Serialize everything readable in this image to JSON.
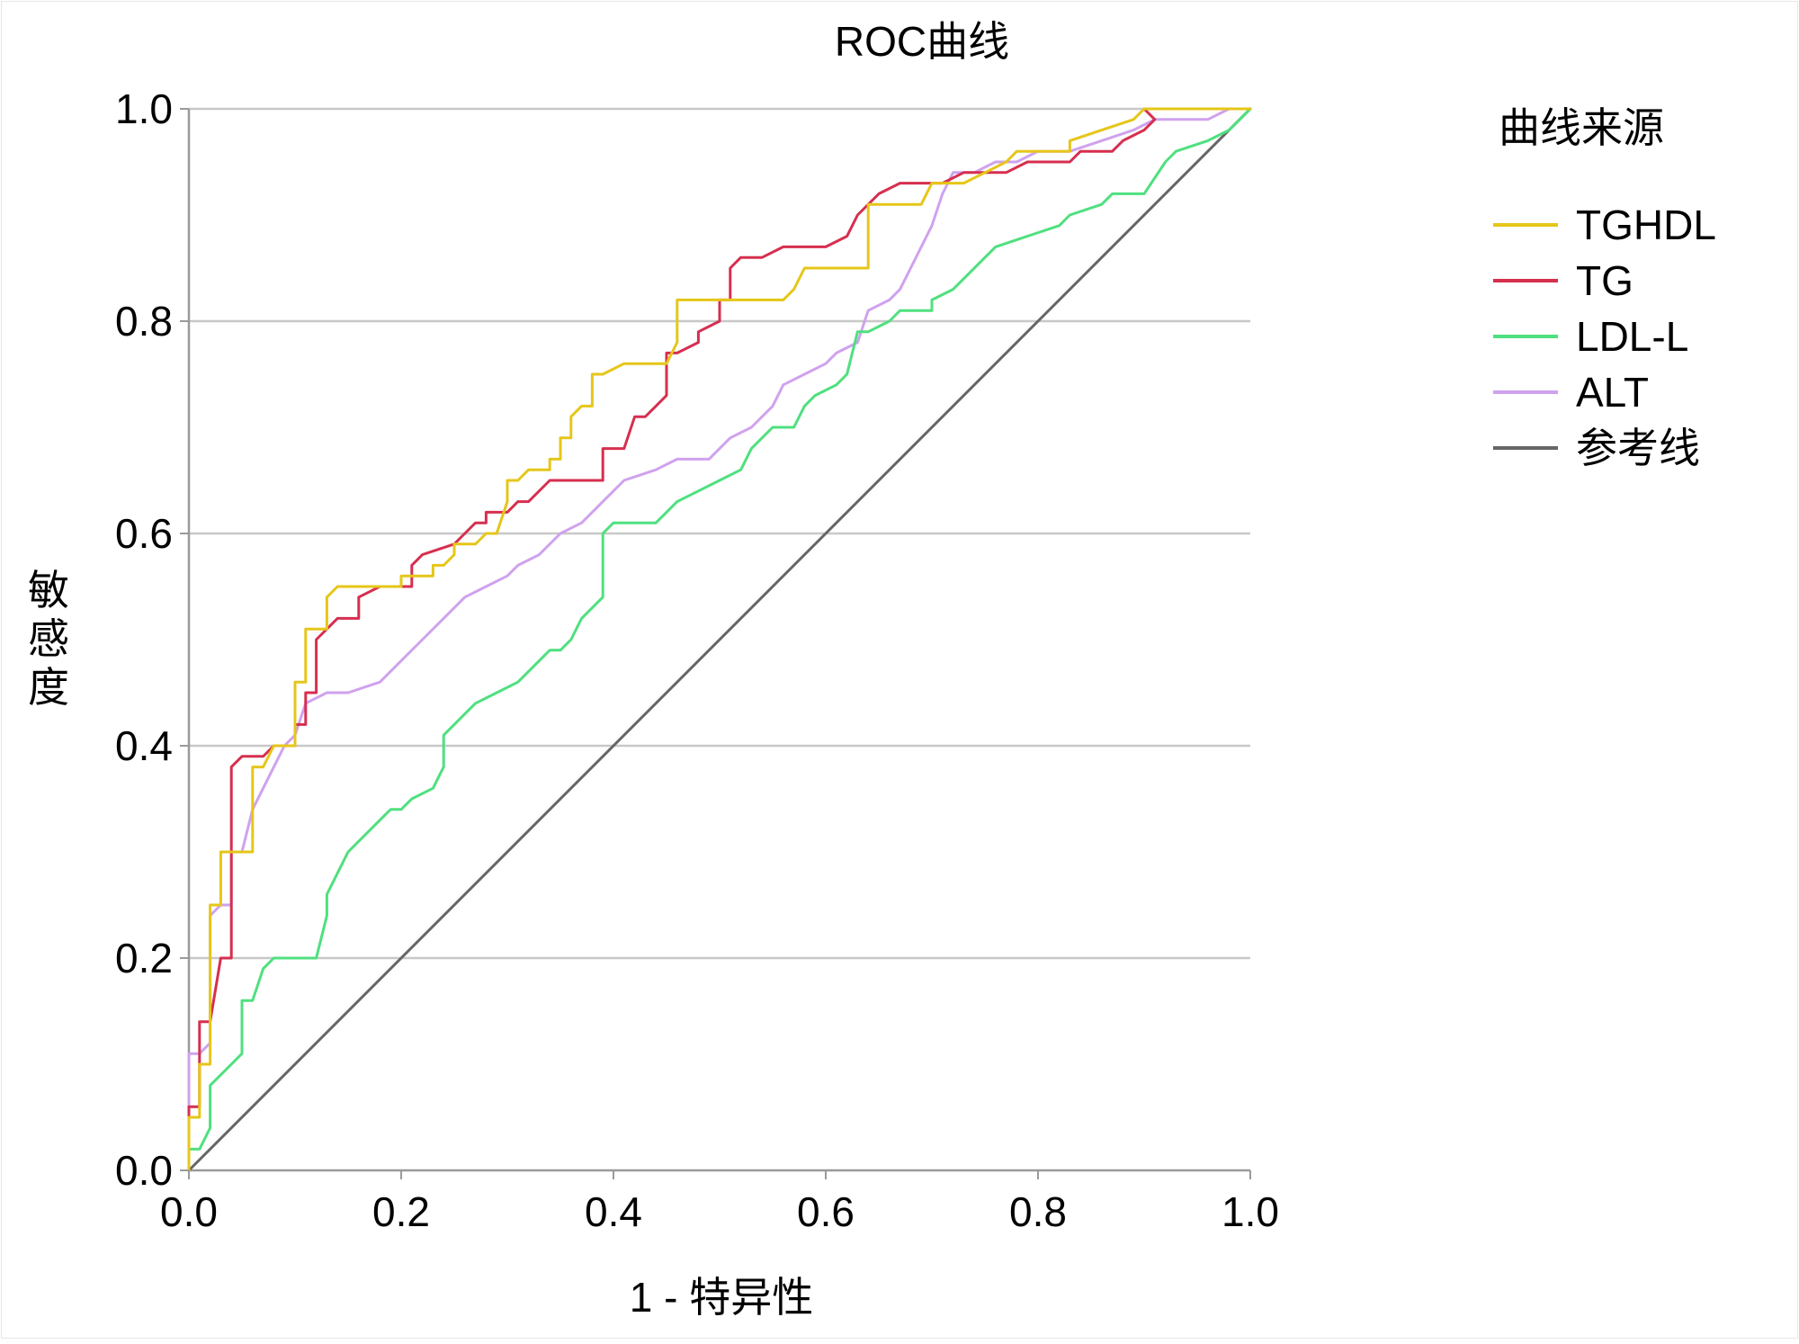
{
  "chart_data": {
    "type": "line",
    "title": "ROC曲线",
    "xlabel": "1 - 特异性",
    "ylabel": "敏感度",
    "xlim": [
      0,
      1
    ],
    "ylim": [
      0,
      1
    ],
    "x_ticks": [
      "0.0",
      "0.2",
      "0.4",
      "0.6",
      "0.8",
      "1.0"
    ],
    "y_ticks": [
      "0.0",
      "0.2",
      "0.4",
      "0.6",
      "0.8",
      "1.0"
    ],
    "grid": "horizontal",
    "legend": {
      "title": "曲线来源",
      "position": "right"
    },
    "series": [
      {
        "name": "TGHDL",
        "color": "#e6c619",
        "points": [
          [
            0,
            0
          ],
          [
            0,
            0.05
          ],
          [
            0.01,
            0.05
          ],
          [
            0.01,
            0.1
          ],
          [
            0.02,
            0.1
          ],
          [
            0.02,
            0.25
          ],
          [
            0.03,
            0.25
          ],
          [
            0.03,
            0.3
          ],
          [
            0.04,
            0.3
          ],
          [
            0.05,
            0.3
          ],
          [
            0.06,
            0.3
          ],
          [
            0.06,
            0.38
          ],
          [
            0.07,
            0.38
          ],
          [
            0.08,
            0.4
          ],
          [
            0.1,
            0.4
          ],
          [
            0.1,
            0.46
          ],
          [
            0.11,
            0.46
          ],
          [
            0.11,
            0.51
          ],
          [
            0.12,
            0.51
          ],
          [
            0.13,
            0.51
          ],
          [
            0.13,
            0.54
          ],
          [
            0.14,
            0.55
          ],
          [
            0.16,
            0.55
          ],
          [
            0.2,
            0.55
          ],
          [
            0.2,
            0.56
          ],
          [
            0.23,
            0.56
          ],
          [
            0.23,
            0.57
          ],
          [
            0.24,
            0.57
          ],
          [
            0.25,
            0.58
          ],
          [
            0.25,
            0.59
          ],
          [
            0.27,
            0.59
          ],
          [
            0.28,
            0.6
          ],
          [
            0.29,
            0.6
          ],
          [
            0.3,
            0.63
          ],
          [
            0.3,
            0.65
          ],
          [
            0.31,
            0.65
          ],
          [
            0.32,
            0.66
          ],
          [
            0.34,
            0.66
          ],
          [
            0.34,
            0.67
          ],
          [
            0.35,
            0.67
          ],
          [
            0.35,
            0.69
          ],
          [
            0.36,
            0.69
          ],
          [
            0.36,
            0.71
          ],
          [
            0.37,
            0.72
          ],
          [
            0.38,
            0.72
          ],
          [
            0.38,
            0.75
          ],
          [
            0.39,
            0.75
          ],
          [
            0.41,
            0.76
          ],
          [
            0.42,
            0.76
          ],
          [
            0.45,
            0.76
          ],
          [
            0.46,
            0.78
          ],
          [
            0.46,
            0.82
          ],
          [
            0.47,
            0.82
          ],
          [
            0.56,
            0.82
          ],
          [
            0.57,
            0.83
          ],
          [
            0.58,
            0.85
          ],
          [
            0.64,
            0.85
          ],
          [
            0.64,
            0.91
          ],
          [
            0.65,
            0.91
          ],
          [
            0.69,
            0.91
          ],
          [
            0.7,
            0.93
          ],
          [
            0.73,
            0.93
          ],
          [
            0.75,
            0.94
          ],
          [
            0.77,
            0.95
          ],
          [
            0.78,
            0.96
          ],
          [
            0.83,
            0.96
          ],
          [
            0.83,
            0.97
          ],
          [
            0.86,
            0.98
          ],
          [
            0.89,
            0.99
          ],
          [
            0.9,
            1.0
          ],
          [
            1.0,
            1.0
          ]
        ]
      },
      {
        "name": "TG",
        "color": "#d62f4f",
        "points": [
          [
            0,
            0
          ],
          [
            0,
            0.06
          ],
          [
            0.01,
            0.06
          ],
          [
            0.01,
            0.14
          ],
          [
            0.02,
            0.14
          ],
          [
            0.03,
            0.2
          ],
          [
            0.04,
            0.2
          ],
          [
            0.04,
            0.38
          ],
          [
            0.05,
            0.39
          ],
          [
            0.07,
            0.39
          ],
          [
            0.08,
            0.4
          ],
          [
            0.1,
            0.4
          ],
          [
            0.1,
            0.42
          ],
          [
            0.11,
            0.42
          ],
          [
            0.11,
            0.45
          ],
          [
            0.12,
            0.45
          ],
          [
            0.12,
            0.5
          ],
          [
            0.13,
            0.51
          ],
          [
            0.14,
            0.52
          ],
          [
            0.16,
            0.52
          ],
          [
            0.16,
            0.54
          ],
          [
            0.18,
            0.55
          ],
          [
            0.21,
            0.55
          ],
          [
            0.21,
            0.57
          ],
          [
            0.22,
            0.58
          ],
          [
            0.25,
            0.59
          ],
          [
            0.26,
            0.6
          ],
          [
            0.27,
            0.61
          ],
          [
            0.28,
            0.61
          ],
          [
            0.28,
            0.62
          ],
          [
            0.3,
            0.62
          ],
          [
            0.31,
            0.63
          ],
          [
            0.32,
            0.63
          ],
          [
            0.34,
            0.65
          ],
          [
            0.36,
            0.65
          ],
          [
            0.39,
            0.65
          ],
          [
            0.39,
            0.68
          ],
          [
            0.41,
            0.68
          ],
          [
            0.42,
            0.71
          ],
          [
            0.43,
            0.71
          ],
          [
            0.44,
            0.72
          ],
          [
            0.45,
            0.73
          ],
          [
            0.45,
            0.77
          ],
          [
            0.46,
            0.77
          ],
          [
            0.48,
            0.78
          ],
          [
            0.48,
            0.79
          ],
          [
            0.5,
            0.8
          ],
          [
            0.5,
            0.82
          ],
          [
            0.51,
            0.82
          ],
          [
            0.51,
            0.85
          ],
          [
            0.52,
            0.86
          ],
          [
            0.54,
            0.86
          ],
          [
            0.56,
            0.87
          ],
          [
            0.6,
            0.87
          ],
          [
            0.62,
            0.88
          ],
          [
            0.63,
            0.9
          ],
          [
            0.65,
            0.92
          ],
          [
            0.67,
            0.93
          ],
          [
            0.71,
            0.93
          ],
          [
            0.73,
            0.94
          ],
          [
            0.77,
            0.94
          ],
          [
            0.79,
            0.95
          ],
          [
            0.83,
            0.95
          ],
          [
            0.84,
            0.96
          ],
          [
            0.87,
            0.96
          ],
          [
            0.88,
            0.97
          ],
          [
            0.9,
            0.98
          ],
          [
            0.91,
            0.99
          ],
          [
            0.9,
            1.0
          ],
          [
            1.0,
            1.0
          ]
        ]
      },
      {
        "name": "LDL-L",
        "color": "#4fe07f",
        "points": [
          [
            0,
            0
          ],
          [
            0,
            0.02
          ],
          [
            0.01,
            0.02
          ],
          [
            0.02,
            0.04
          ],
          [
            0.02,
            0.08
          ],
          [
            0.03,
            0.09
          ],
          [
            0.05,
            0.11
          ],
          [
            0.05,
            0.16
          ],
          [
            0.06,
            0.16
          ],
          [
            0.07,
            0.19
          ],
          [
            0.08,
            0.2
          ],
          [
            0.09,
            0.2
          ],
          [
            0.12,
            0.2
          ],
          [
            0.13,
            0.24
          ],
          [
            0.13,
            0.26
          ],
          [
            0.14,
            0.28
          ],
          [
            0.15,
            0.3
          ],
          [
            0.18,
            0.33
          ],
          [
            0.19,
            0.34
          ],
          [
            0.2,
            0.34
          ],
          [
            0.21,
            0.35
          ],
          [
            0.23,
            0.36
          ],
          [
            0.24,
            0.38
          ],
          [
            0.24,
            0.41
          ],
          [
            0.25,
            0.42
          ],
          [
            0.26,
            0.43
          ],
          [
            0.27,
            0.44
          ],
          [
            0.29,
            0.45
          ],
          [
            0.31,
            0.46
          ],
          [
            0.33,
            0.48
          ],
          [
            0.34,
            0.49
          ],
          [
            0.35,
            0.49
          ],
          [
            0.36,
            0.5
          ],
          [
            0.37,
            0.52
          ],
          [
            0.39,
            0.54
          ],
          [
            0.39,
            0.6
          ],
          [
            0.4,
            0.61
          ],
          [
            0.42,
            0.61
          ],
          [
            0.44,
            0.61
          ],
          [
            0.45,
            0.62
          ],
          [
            0.46,
            0.63
          ],
          [
            0.48,
            0.64
          ],
          [
            0.5,
            0.65
          ],
          [
            0.52,
            0.66
          ],
          [
            0.53,
            0.68
          ],
          [
            0.55,
            0.7
          ],
          [
            0.57,
            0.7
          ],
          [
            0.58,
            0.72
          ],
          [
            0.59,
            0.73
          ],
          [
            0.61,
            0.74
          ],
          [
            0.62,
            0.75
          ],
          [
            0.63,
            0.79
          ],
          [
            0.64,
            0.79
          ],
          [
            0.66,
            0.8
          ],
          [
            0.67,
            0.81
          ],
          [
            0.7,
            0.81
          ],
          [
            0.7,
            0.82
          ],
          [
            0.72,
            0.83
          ],
          [
            0.73,
            0.84
          ],
          [
            0.75,
            0.86
          ],
          [
            0.76,
            0.87
          ],
          [
            0.79,
            0.88
          ],
          [
            0.82,
            0.89
          ],
          [
            0.83,
            0.9
          ],
          [
            0.86,
            0.91
          ],
          [
            0.87,
            0.92
          ],
          [
            0.9,
            0.92
          ],
          [
            0.92,
            0.95
          ],
          [
            0.93,
            0.96
          ],
          [
            0.96,
            0.97
          ],
          [
            0.98,
            0.98
          ],
          [
            1.0,
            1.0
          ]
        ]
      },
      {
        "name": "ALT",
        "color": "#cfa2ee",
        "points": [
          [
            0,
            0
          ],
          [
            0,
            0.11
          ],
          [
            0.01,
            0.11
          ],
          [
            0.02,
            0.12
          ],
          [
            0.02,
            0.24
          ],
          [
            0.03,
            0.25
          ],
          [
            0.04,
            0.25
          ],
          [
            0.04,
            0.3
          ],
          [
            0.05,
            0.3
          ],
          [
            0.06,
            0.34
          ],
          [
            0.07,
            0.36
          ],
          [
            0.08,
            0.38
          ],
          [
            0.09,
            0.4
          ],
          [
            0.1,
            0.41
          ],
          [
            0.11,
            0.44
          ],
          [
            0.13,
            0.45
          ],
          [
            0.15,
            0.45
          ],
          [
            0.18,
            0.46
          ],
          [
            0.2,
            0.48
          ],
          [
            0.22,
            0.5
          ],
          [
            0.24,
            0.52
          ],
          [
            0.26,
            0.54
          ],
          [
            0.28,
            0.55
          ],
          [
            0.3,
            0.56
          ],
          [
            0.31,
            0.57
          ],
          [
            0.33,
            0.58
          ],
          [
            0.35,
            0.6
          ],
          [
            0.37,
            0.61
          ],
          [
            0.38,
            0.62
          ],
          [
            0.39,
            0.63
          ],
          [
            0.4,
            0.64
          ],
          [
            0.41,
            0.65
          ],
          [
            0.44,
            0.66
          ],
          [
            0.46,
            0.67
          ],
          [
            0.49,
            0.67
          ],
          [
            0.51,
            0.69
          ],
          [
            0.53,
            0.7
          ],
          [
            0.55,
            0.72
          ],
          [
            0.56,
            0.74
          ],
          [
            0.58,
            0.75
          ],
          [
            0.6,
            0.76
          ],
          [
            0.61,
            0.77
          ],
          [
            0.63,
            0.78
          ],
          [
            0.64,
            0.81
          ],
          [
            0.66,
            0.82
          ],
          [
            0.67,
            0.83
          ],
          [
            0.68,
            0.85
          ],
          [
            0.7,
            0.89
          ],
          [
            0.71,
            0.92
          ],
          [
            0.72,
            0.94
          ],
          [
            0.74,
            0.94
          ],
          [
            0.76,
            0.95
          ],
          [
            0.78,
            0.95
          ],
          [
            0.8,
            0.96
          ],
          [
            0.83,
            0.96
          ],
          [
            0.86,
            0.97
          ],
          [
            0.89,
            0.98
          ],
          [
            0.91,
            0.99
          ],
          [
            0.96,
            0.99
          ],
          [
            0.98,
            1.0
          ],
          [
            1.0,
            1.0
          ]
        ]
      },
      {
        "name": "参考线",
        "color": "#666666",
        "points": [
          [
            0,
            0
          ],
          [
            1,
            1
          ]
        ]
      }
    ]
  }
}
